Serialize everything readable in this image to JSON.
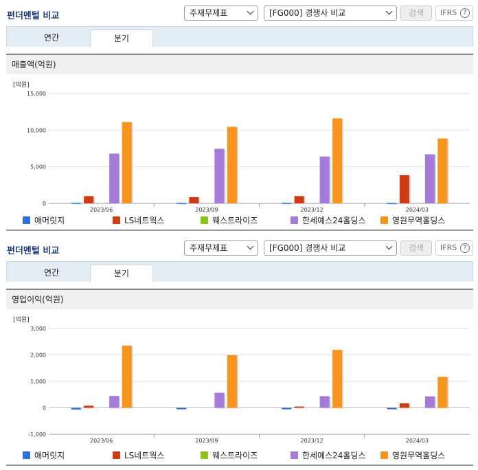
{
  "panels": [
    {
      "title": "펀더멘털 비교",
      "select1": "주재무제표",
      "select2": "[FG000] 경쟁사 비교",
      "search_label": "검색",
      "ifrs_label": "IFRS",
      "help_label": "?",
      "tabs": [
        "연간",
        "분기"
      ],
      "active_tab": "분기",
      "chart_title": "매출액(억원)",
      "legend": [
        "애머릿지",
        "LS네트웍스",
        "웨스트라이즈",
        "한세예스24홀딩스",
        "영원무역홀딩스"
      ]
    },
    {
      "title": "펀더멘털 비교",
      "select1": "주재무제표",
      "select2": "[FG000] 경쟁사 비교",
      "search_label": "검색",
      "ifrs_label": "IFRS",
      "help_label": "?",
      "tabs": [
        "연간",
        "분기"
      ],
      "active_tab": "분기",
      "chart_title": "영업이익(억원)",
      "legend": [
        "애머릿지",
        "LS네트웍스",
        "웨스트라이즈",
        "한세예스24홀딩스",
        "영원무역홀딩스"
      ]
    }
  ],
  "colors": [
    "#2f6fdc",
    "#d13b14",
    "#8cc21a",
    "#a57ad8",
    "#f7941d"
  ],
  "chart_data": [
    {
      "type": "bar",
      "title": "매출액(억원)",
      "unit": "[억원]",
      "categories": [
        "2023/06",
        "2023/09",
        "2023/12",
        "2024/03"
      ],
      "yticks": [
        0,
        5000,
        10000,
        15000
      ],
      "ytick_labels": [
        "0",
        "5,000",
        "10,000",
        "15,000"
      ],
      "ylim": [
        0,
        15000
      ],
      "series": [
        {
          "name": "애머릿지",
          "values": [
            100,
            90,
            90,
            80
          ]
        },
        {
          "name": "LS네트웍스",
          "values": [
            1000,
            850,
            1000,
            3850
          ]
        },
        {
          "name": "웨스트라이즈",
          "values": [
            0,
            0,
            0,
            0
          ]
        },
        {
          "name": "한세예스24홀딩스",
          "values": [
            6800,
            7450,
            6400,
            6700
          ]
        },
        {
          "name": "영원무역홀딩스",
          "values": [
            11100,
            10450,
            11600,
            8850
          ]
        }
      ]
    },
    {
      "type": "bar",
      "title": "영업이익(억원)",
      "unit": "[억원]",
      "categories": [
        "2023/06",
        "2023/09",
        "2023/12",
        "2024/03"
      ],
      "yticks": [
        -1000,
        0,
        1000,
        2000,
        3000
      ],
      "ytick_labels": [
        "-1,000",
        "0",
        "1,000",
        "2,000",
        "3,000"
      ],
      "ylim": [
        -1000,
        3000
      ],
      "series": [
        {
          "name": "애머릿지",
          "values": [
            -60,
            -50,
            -50,
            -50
          ]
        },
        {
          "name": "LS네트웍스",
          "values": [
            80,
            0,
            50,
            170
          ]
        },
        {
          "name": "웨스트라이즈",
          "values": [
            0,
            0,
            0,
            0
          ]
        },
        {
          "name": "한세예스24홀딩스",
          "values": [
            450,
            570,
            440,
            430
          ]
        },
        {
          "name": "영원무역홀딩스",
          "values": [
            2350,
            1990,
            2190,
            1170
          ]
        }
      ]
    }
  ]
}
